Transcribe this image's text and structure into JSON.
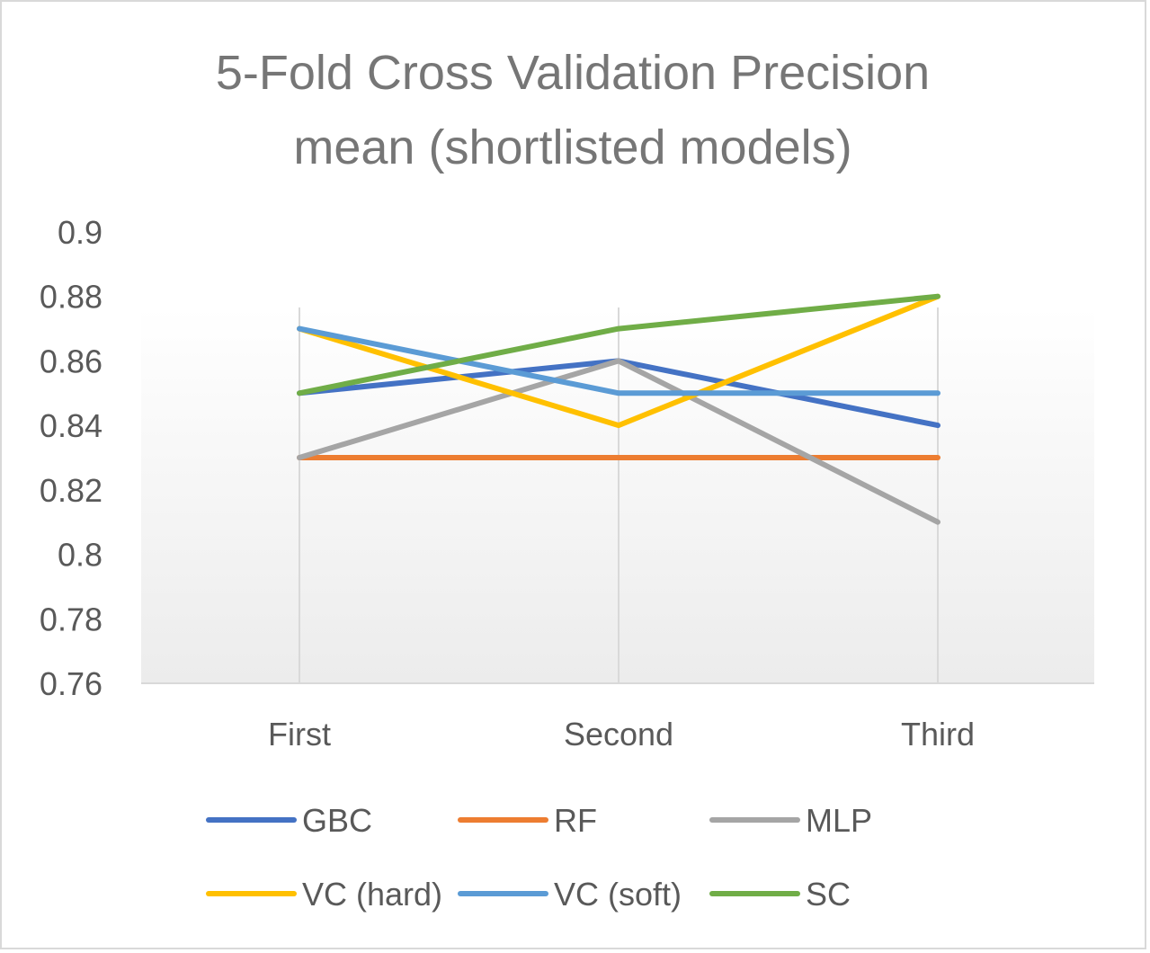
{
  "chart_data": {
    "type": "line",
    "title_lines": [
      "5-Fold Cross Validation Precision",
      "mean (shortlisted models)"
    ],
    "categories": [
      "First",
      "Second",
      "Third"
    ],
    "ylim": [
      0.76,
      0.9
    ],
    "yticks": [
      "0.76",
      "0.78",
      "0.8",
      "0.82",
      "0.84",
      "0.86",
      "0.88",
      "0.9"
    ],
    "grid": "vertical",
    "legend_position": "bottom",
    "series": [
      {
        "name": "GBC",
        "color": "#4472c4",
        "values": [
          0.85,
          0.86,
          0.84
        ]
      },
      {
        "name": "RF",
        "color": "#ed7d31",
        "values": [
          0.83,
          0.83,
          0.83
        ]
      },
      {
        "name": "MLP",
        "color": "#a5a5a5",
        "values": [
          0.83,
          0.86,
          0.81
        ]
      },
      {
        "name": "VC (hard)",
        "color": "#ffc000",
        "values": [
          0.87,
          0.84,
          0.88
        ]
      },
      {
        "name": "VC (soft)",
        "color": "#5b9bd5",
        "values": [
          0.87,
          0.85,
          0.85
        ]
      },
      {
        "name": "SC",
        "color": "#70ad47",
        "values": [
          0.85,
          0.87,
          0.88
        ]
      }
    ]
  }
}
